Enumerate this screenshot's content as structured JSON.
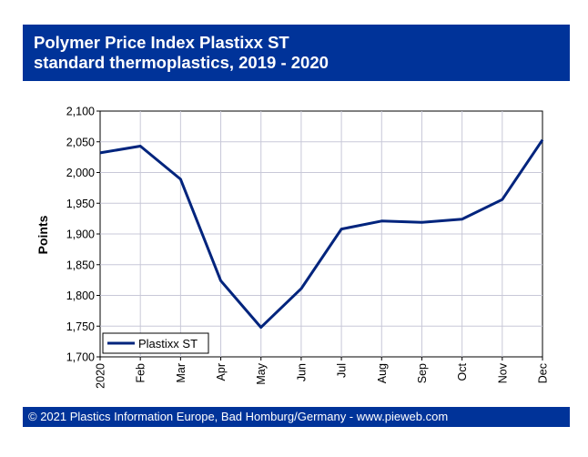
{
  "title": {
    "line1": "Polymer Price Index Plastixx ST",
    "line2": "standard thermoplastics, 2019 - 2020"
  },
  "footer": "© 2021 Plastics Information Europe, Bad Homburg/Germany - www.pieweb.com",
  "colors": {
    "banner": "#003399",
    "series": "#00247d",
    "grid": "#c8c8d8"
  },
  "chart_data": {
    "type": "line",
    "title": "Polymer Price Index Plastixx ST standard thermoplastics, 2019 - 2020",
    "xlabel": "",
    "ylabel": "Points",
    "categories": [
      "2020",
      "Feb",
      "Mar",
      "Apr",
      "May",
      "Jun",
      "Jul",
      "Aug",
      "Sep",
      "Oct",
      "Nov",
      "Dec"
    ],
    "series": [
      {
        "name": "Plastixx ST",
        "values": [
          2032,
          2043,
          1989,
          1824,
          1748,
          1811,
          1908,
          1921,
          1919,
          1924,
          1956,
          2053
        ]
      }
    ],
    "ylim": [
      1700,
      2100
    ],
    "yticks": [
      1700,
      1750,
      1800,
      1850,
      1900,
      1950,
      2000,
      2050,
      2100
    ],
    "ytick_labels": [
      "1,700",
      "1,750",
      "1,800",
      "1,850",
      "1,900",
      "1,950",
      "2,000",
      "2,050",
      "2,100"
    ],
    "grid": true,
    "legend": "bottom-left"
  }
}
